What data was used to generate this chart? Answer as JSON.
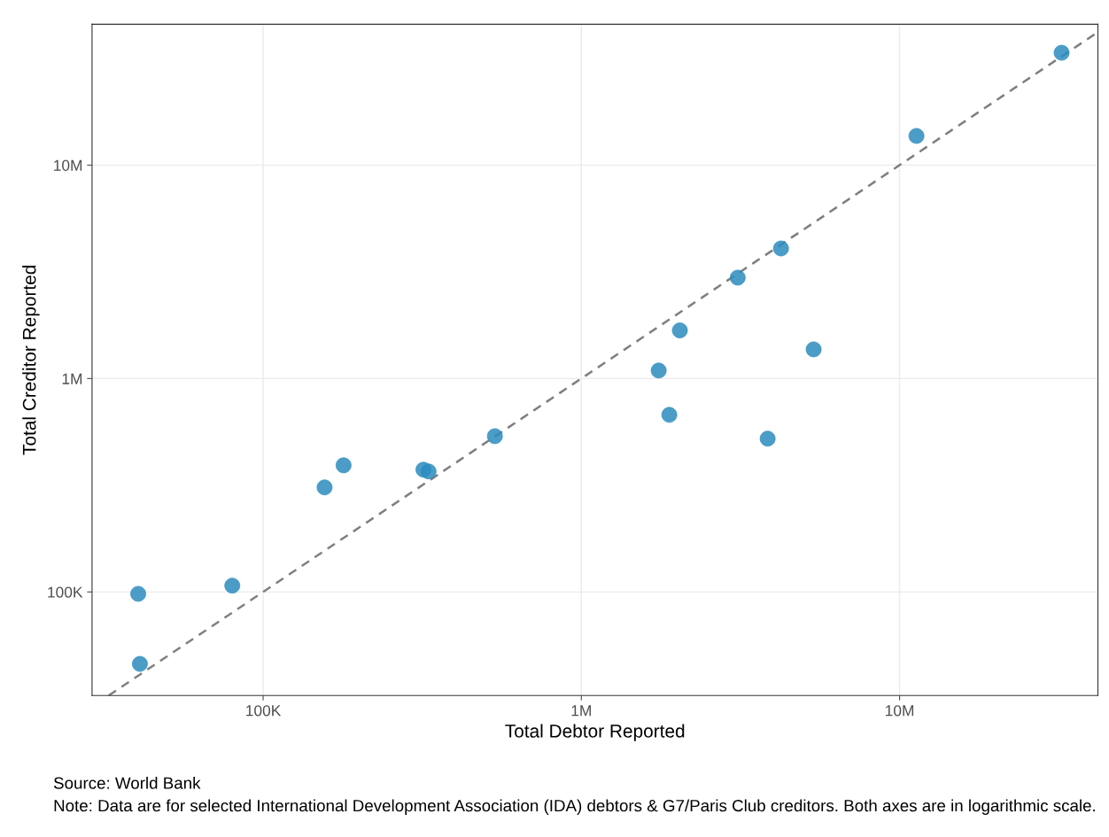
{
  "chart_data": {
    "type": "scatter",
    "xlabel": "Total Debtor Reported",
    "ylabel": "Total Creditor Reported",
    "x": [
      40500,
      41000,
      80000,
      156000,
      179000,
      319000,
      331000,
      535000,
      1750000,
      1890000,
      2040000,
      3100000,
      3850000,
      4240000,
      5370000,
      11300000,
      32300000
    ],
    "series": [
      {
        "color": "#2b8cbe",
        "marker": "circle",
        "values": [
          98000,
          46000,
          107000,
          309000,
          392000,
          374000,
          367000,
          537000,
          1090000,
          676000,
          1680000,
          2970000,
          523000,
          4070000,
          1370000,
          13700000,
          33600000
        ]
      },
      {
        "type": "line",
        "color": "#7f7f7f",
        "line_style": "dashed",
        "marker": "none",
        "x": [
          32700,
          42000000
        ],
        "values": [
          32700,
          42000000
        ]
      }
    ],
    "log": "xy",
    "grid": true,
    "legend": false,
    "xlim": [
      29000,
      42000000
    ],
    "ylim": [
      32700,
      45700000
    ],
    "xticks": [
      {
        "value": 100000,
        "label": "100K"
      },
      {
        "value": 1000000,
        "label": "1M"
      },
      {
        "value": 10000000,
        "label": "10M"
      }
    ],
    "yticks": [
      {
        "value": 100000,
        "label": "100K"
      },
      {
        "value": 1000000,
        "label": "1M"
      },
      {
        "value": 10000000,
        "label": "10M"
      }
    ],
    "annotations": [
      "Source: World Bank",
      "Note: Data are for selected International Development Association (IDA) debtors & G7/Paris Club creditors. Both axes are in logarithmic scale."
    ]
  }
}
